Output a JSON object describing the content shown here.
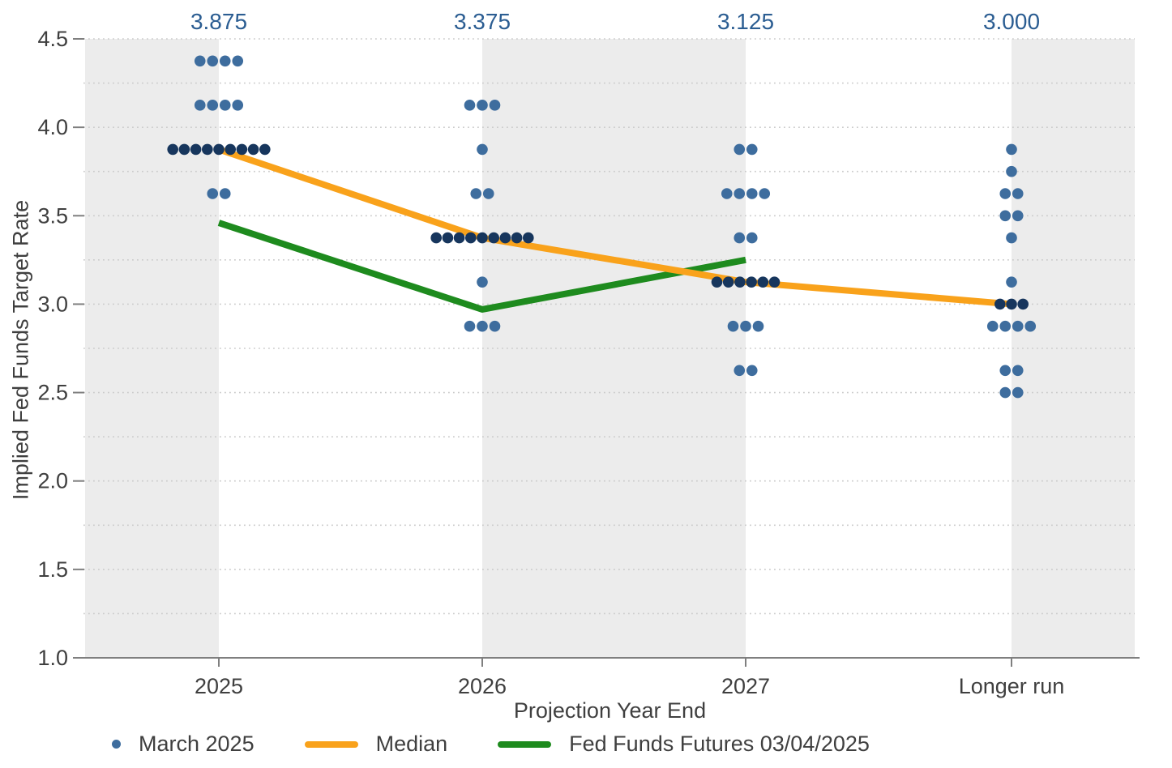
{
  "colors": {
    "dot": "#3E6D9E",
    "dot_median_row": "#17365D",
    "median_line": "#F9A21B",
    "futures_line": "#1E8B1E",
    "median_label_text": "#2B5D92",
    "axis_text": "#3F3F3F",
    "band": "#ECECEC",
    "grid": "#CBCBCB",
    "axis_line": "#7F7F7F"
  },
  "y_axis": {
    "title": "Implied Fed Funds Target Rate",
    "min": 1.0,
    "max": 4.5,
    "tick_labels": [
      "4.5",
      "4.0",
      "3.5",
      "3.0",
      "2.5",
      "2.0",
      "1.5",
      "1.0"
    ],
    "minor_grid_step": 0.25
  },
  "x_axis": {
    "title": "Projection Year End",
    "categories": [
      "2025",
      "2026",
      "2027",
      "Longer run"
    ]
  },
  "median_labels": [
    "3.875",
    "3.375",
    "3.125",
    "3.000"
  ],
  "legend": {
    "items": [
      {
        "label": "March 2025",
        "marker": "dot"
      },
      {
        "label": "Median",
        "marker": "line"
      },
      {
        "label": "Fed Funds Futures 03/04/2025",
        "marker": "line"
      }
    ]
  },
  "chart_data": {
    "type": "scatter",
    "categories": [
      "2025",
      "2026",
      "2027",
      "Longer run"
    ],
    "ylim": [
      1.0,
      4.5
    ],
    "grid": "dotted-minor-0.25",
    "legend_position": "bottom",
    "dot_series_name": "March 2025",
    "dots": [
      {
        "category": "2025",
        "points": [
          {
            "rate": 4.375,
            "count": 4
          },
          {
            "rate": 4.125,
            "count": 4
          },
          {
            "rate": 3.875,
            "count": 9,
            "median": true
          },
          {
            "rate": 3.625,
            "count": 2
          }
        ]
      },
      {
        "category": "2026",
        "points": [
          {
            "rate": 4.125,
            "count": 3
          },
          {
            "rate": 3.875,
            "count": 1
          },
          {
            "rate": 3.625,
            "count": 2
          },
          {
            "rate": 3.375,
            "count": 9,
            "median": true
          },
          {
            "rate": 3.125,
            "count": 1
          },
          {
            "rate": 2.875,
            "count": 3
          }
        ]
      },
      {
        "category": "2027",
        "points": [
          {
            "rate": 3.875,
            "count": 2
          },
          {
            "rate": 3.625,
            "count": 4
          },
          {
            "rate": 3.375,
            "count": 2
          },
          {
            "rate": 3.125,
            "count": 6,
            "median": true
          },
          {
            "rate": 2.875,
            "count": 3
          },
          {
            "rate": 2.625,
            "count": 2
          }
        ]
      },
      {
        "category": "Longer run",
        "points": [
          {
            "rate": 3.875,
            "count": 1
          },
          {
            "rate": 3.75,
            "count": 1
          },
          {
            "rate": 3.625,
            "count": 2
          },
          {
            "rate": 3.5,
            "count": 2
          },
          {
            "rate": 3.375,
            "count": 1
          },
          {
            "rate": 3.125,
            "count": 1
          },
          {
            "rate": 3.0,
            "count": 3,
            "median": true
          },
          {
            "rate": 2.875,
            "count": 4
          },
          {
            "rate": 2.625,
            "count": 2
          },
          {
            "rate": 2.5,
            "count": 2
          }
        ]
      }
    ],
    "medians": [
      3.875,
      3.375,
      3.125,
      3.0
    ],
    "series": [
      {
        "name": "Median",
        "type": "line",
        "color": "#F9A21B",
        "categories": [
          "2025",
          "2026",
          "2027",
          "Longer run"
        ],
        "values": [
          3.875,
          3.375,
          3.125,
          3.0
        ]
      },
      {
        "name": "Fed Funds Futures 03/04/2025",
        "type": "line",
        "color": "#1E8B1E",
        "categories": [
          "2025",
          "2026",
          "2027"
        ],
        "values": [
          3.46,
          2.97,
          3.25
        ]
      }
    ]
  }
}
